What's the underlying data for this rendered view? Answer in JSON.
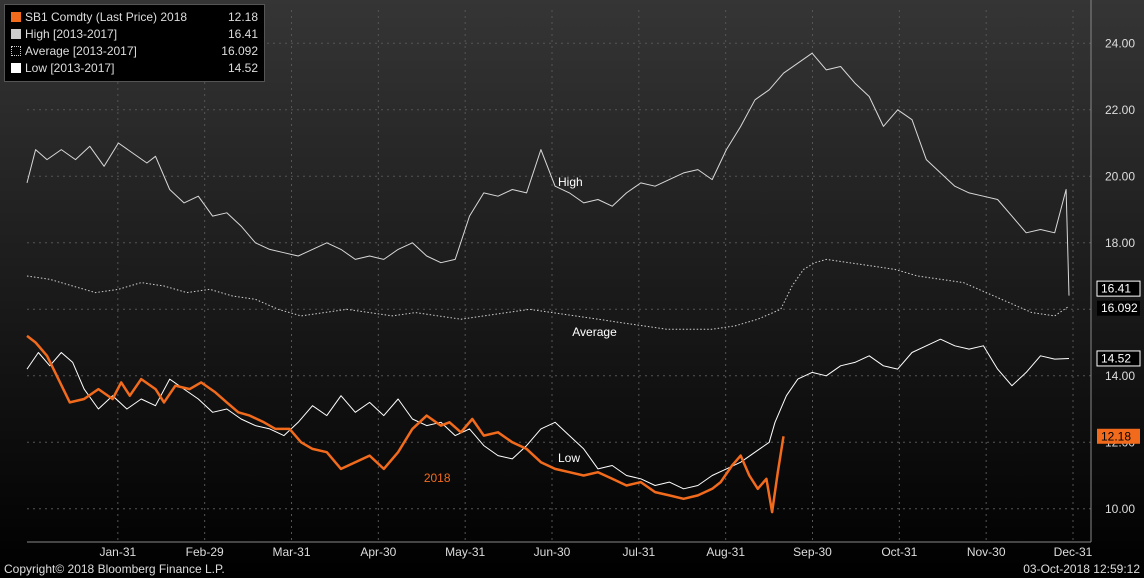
{
  "chart_data": {
    "type": "line",
    "x_ticks": [
      "Jan-31",
      "Feb-29",
      "Mar-31",
      "Apr-30",
      "May-31",
      "Jun-30",
      "Jul-31",
      "Aug-31",
      "Sep-30",
      "Oct-31",
      "Nov-30",
      "Dec-31"
    ],
    "y_ticks": [
      "10.00",
      "12.00",
      "14.00",
      "16.00",
      "18.00",
      "20.00",
      "22.00",
      "24.00"
    ],
    "ylim": [
      9,
      25
    ],
    "xlim": [
      0,
      365
    ],
    "grid": true,
    "legend_position": "top-left",
    "legend": [
      {
        "label": "SB1 Comdty (Last Price) 2018",
        "value": "12.18",
        "color": "#f26b1d",
        "style": "solid"
      },
      {
        "label": "High [2013-2017]",
        "value": "16.41",
        "color": "#cccccc",
        "style": "solid"
      },
      {
        "label": "Average [2013-2017]",
        "value": "16.092",
        "color": "#cccccc",
        "style": "dotted"
      },
      {
        "label": "Low [2013-2017]",
        "value": "14.52",
        "color": "#ffffff",
        "style": "solid"
      }
    ],
    "series": [
      {
        "name": "2018",
        "key": "last_price",
        "color": "#f26b1d",
        "width": 2.5,
        "dash": "",
        "x": [
          0,
          3,
          7,
          11,
          15,
          20,
          25,
          30,
          33,
          36,
          40,
          45,
          48,
          52,
          57,
          61,
          66,
          70,
          74,
          78,
          83,
          87,
          92,
          96,
          100,
          105,
          110,
          115,
          120,
          125,
          130,
          135,
          140,
          145,
          148,
          152,
          156,
          160,
          165,
          170,
          175,
          180,
          185,
          190,
          195,
          200,
          205,
          210,
          215,
          220,
          225,
          230,
          235,
          240,
          243,
          247,
          250,
          253,
          256,
          259,
          261,
          263,
          265
        ],
        "y": [
          15.2,
          15.0,
          14.6,
          13.9,
          13.2,
          13.3,
          13.6,
          13.3,
          13.8,
          13.4,
          13.9,
          13.6,
          13.2,
          13.7,
          13.6,
          13.8,
          13.5,
          13.2,
          12.9,
          12.8,
          12.6,
          12.4,
          12.4,
          12.0,
          11.8,
          11.7,
          11.2,
          11.4,
          11.6,
          11.2,
          11.7,
          12.4,
          12.8,
          12.5,
          12.6,
          12.3,
          12.7,
          12.2,
          12.3,
          12.0,
          11.8,
          11.4,
          11.2,
          11.1,
          11.0,
          11.1,
          10.9,
          10.7,
          10.8,
          10.5,
          10.4,
          10.3,
          10.4,
          10.6,
          10.8,
          11.3,
          11.6,
          11.0,
          10.6,
          10.9,
          9.9,
          11.1,
          12.18
        ]
      },
      {
        "name": "High",
        "key": "high",
        "color": "#d8d8d8",
        "width": 1,
        "dash": "",
        "x": [
          0,
          3,
          7,
          12,
          17,
          22,
          27,
          32,
          37,
          42,
          45,
          50,
          55,
          60,
          65,
          70,
          75,
          80,
          85,
          90,
          95,
          100,
          105,
          110,
          115,
          120,
          125,
          130,
          135,
          140,
          145,
          150,
          155,
          160,
          165,
          170,
          175,
          180,
          185,
          190,
          195,
          200,
          205,
          210,
          215,
          220,
          225,
          230,
          235,
          240,
          245,
          250,
          255,
          260,
          265,
          270,
          275,
          280,
          285,
          290,
          295,
          300,
          305,
          310,
          315,
          320,
          325,
          330,
          335,
          340,
          345,
          350,
          355,
          360,
          364,
          365
        ],
        "y": [
          19.8,
          20.8,
          20.5,
          20.8,
          20.5,
          20.9,
          20.3,
          21.0,
          20.7,
          20.4,
          20.6,
          19.6,
          19.2,
          19.4,
          18.8,
          18.9,
          18.5,
          18.0,
          17.8,
          17.7,
          17.6,
          17.8,
          18.0,
          17.8,
          17.5,
          17.6,
          17.5,
          17.8,
          18.0,
          17.6,
          17.4,
          17.5,
          18.8,
          19.5,
          19.4,
          19.6,
          19.5,
          20.8,
          19.7,
          19.5,
          19.2,
          19.3,
          19.1,
          19.5,
          19.8,
          19.7,
          19.9,
          20.1,
          20.2,
          19.9,
          20.8,
          21.5,
          22.3,
          22.6,
          23.1,
          23.4,
          23.7,
          23.2,
          23.3,
          22.8,
          22.4,
          21.5,
          22.0,
          21.7,
          20.5,
          20.1,
          19.7,
          19.5,
          19.4,
          19.3,
          18.8,
          18.3,
          18.4,
          18.3,
          19.6,
          16.41
        ]
      },
      {
        "name": "Average",
        "key": "average",
        "color": "#cfcfcf",
        "width": 1,
        "dash": "1.5,2",
        "x": [
          0,
          8,
          16,
          24,
          32,
          40,
          48,
          56,
          64,
          72,
          80,
          88,
          96,
          104,
          112,
          120,
          128,
          136,
          144,
          152,
          160,
          168,
          176,
          184,
          192,
          200,
          208,
          216,
          224,
          232,
          240,
          248,
          256,
          264,
          268,
          272,
          276,
          280,
          288,
          296,
          304,
          312,
          320,
          328,
          336,
          344,
          352,
          360,
          365
        ],
        "y": [
          17.0,
          16.9,
          16.7,
          16.5,
          16.6,
          16.8,
          16.7,
          16.5,
          16.6,
          16.4,
          16.3,
          16.0,
          15.8,
          15.9,
          16.0,
          15.9,
          15.8,
          15.9,
          15.8,
          15.7,
          15.8,
          15.9,
          16.0,
          15.9,
          15.8,
          15.7,
          15.6,
          15.5,
          15.4,
          15.4,
          15.4,
          15.5,
          15.7,
          16.0,
          16.7,
          17.2,
          17.4,
          17.5,
          17.4,
          17.3,
          17.2,
          17.0,
          16.9,
          16.8,
          16.5,
          16.2,
          15.9,
          15.8,
          16.092
        ]
      },
      {
        "name": "Low",
        "key": "low",
        "color": "#ffffff",
        "width": 1,
        "dash": "",
        "x": [
          0,
          4,
          8,
          12,
          16,
          20,
          25,
          30,
          35,
          40,
          45,
          50,
          55,
          60,
          65,
          70,
          75,
          80,
          85,
          90,
          95,
          100,
          105,
          110,
          115,
          120,
          125,
          130,
          135,
          140,
          145,
          150,
          155,
          160,
          165,
          170,
          175,
          180,
          185,
          190,
          195,
          200,
          205,
          210,
          215,
          220,
          225,
          230,
          235,
          240,
          245,
          250,
          255,
          260,
          262,
          266,
          270,
          275,
          280,
          285,
          290,
          295,
          300,
          305,
          310,
          315,
          320,
          325,
          330,
          335,
          340,
          345,
          350,
          355,
          360,
          365
        ],
        "y": [
          14.2,
          14.7,
          14.3,
          14.7,
          14.4,
          13.6,
          13.0,
          13.4,
          13.0,
          13.3,
          13.1,
          13.9,
          13.6,
          13.3,
          12.9,
          13.0,
          12.7,
          12.5,
          12.4,
          12.2,
          12.6,
          13.1,
          12.8,
          13.4,
          12.9,
          13.2,
          12.8,
          13.3,
          12.7,
          12.5,
          12.6,
          12.2,
          12.4,
          11.9,
          11.6,
          11.5,
          11.9,
          12.4,
          12.6,
          12.2,
          11.8,
          11.2,
          11.3,
          11.0,
          10.9,
          10.7,
          10.8,
          10.6,
          10.7,
          11.0,
          11.2,
          11.4,
          11.7,
          12.0,
          12.6,
          13.4,
          13.9,
          14.1,
          14.0,
          14.3,
          14.4,
          14.6,
          14.3,
          14.2,
          14.7,
          14.9,
          15.1,
          14.9,
          14.8,
          14.9,
          14.2,
          13.7,
          14.1,
          14.6,
          14.5,
          14.52
        ]
      }
    ],
    "annotations": [
      {
        "text": "High",
        "x": 186,
        "y": 19.7,
        "color": "#ffffff"
      },
      {
        "text": "Average",
        "x": 191,
        "y": 15.2,
        "color": "#ffffff"
      },
      {
        "text": "Low",
        "x": 186,
        "y": 11.4,
        "color": "#ffffff"
      },
      {
        "text": "2018",
        "x": 139,
        "y": 10.8,
        "color": "#f26b1d"
      }
    ],
    "value_labels": [
      {
        "text": "16.41",
        "y": 16.41,
        "bg": "#000000",
        "fg": "#ffffff",
        "border": "#ffffff",
        "dy": -7
      },
      {
        "text": "16.092",
        "y": 16.092,
        "bg": "#000000",
        "fg": "#ffffff",
        "border": "",
        "dy": 2
      },
      {
        "text": "14.52",
        "y": 14.52,
        "bg": "#000000",
        "fg": "#ffffff",
        "border": "#ffffff",
        "dy": 0
      },
      {
        "text": "12.18",
        "y": 12.18,
        "bg": "#f26b1d",
        "fg": "#000000",
        "border": "",
        "dy": 0
      }
    ]
  },
  "footer": {
    "copyright": "Copyright© 2018 Bloomberg Finance L.P.",
    "timestamp": "03-Oct-2018 12:59:12"
  }
}
